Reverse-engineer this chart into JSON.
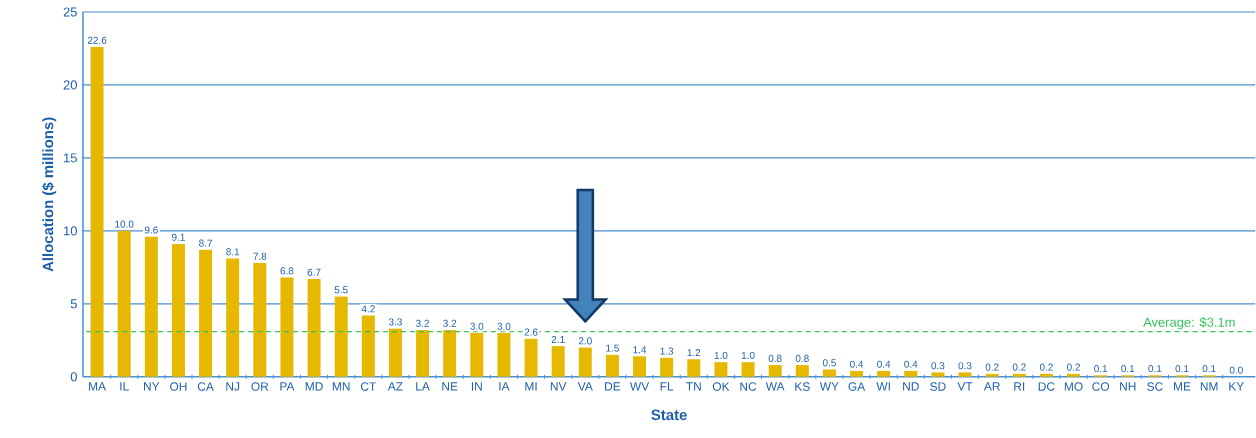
{
  "chart_data": {
    "type": "bar",
    "xlabel": "State",
    "ylabel": "Allocation ($ millions)",
    "categories": [
      "MA",
      "IL",
      "NY",
      "OH",
      "CA",
      "NJ",
      "OR",
      "PA",
      "MD",
      "MN",
      "CT",
      "AZ",
      "LA",
      "NE",
      "IN",
      "IA",
      "MI",
      "NV",
      "VA",
      "DE",
      "WV",
      "FL",
      "TN",
      "OK",
      "NC",
      "WA",
      "KS",
      "WY",
      "GA",
      "WI",
      "ND",
      "SD",
      "VT",
      "AR",
      "RI",
      "DC",
      "MO",
      "CO",
      "NH",
      "SC",
      "ME",
      "NM",
      "KY"
    ],
    "values": [
      22.6,
      10.0,
      9.6,
      9.1,
      8.7,
      8.1,
      7.8,
      6.8,
      6.7,
      5.5,
      4.2,
      3.3,
      3.2,
      3.2,
      3.0,
      3.0,
      2.6,
      2.1,
      2.0,
      1.5,
      1.4,
      1.3,
      1.2,
      1.0,
      1.0,
      0.8,
      0.8,
      0.5,
      0.4,
      0.4,
      0.4,
      0.3,
      0.3,
      0.2,
      0.2,
      0.2,
      0.2,
      0.1,
      0.1,
      0.1,
      0.1,
      0.1,
      0.0
    ],
    "value_labels": [
      "22.6",
      "10.0",
      "9.6",
      "9.1",
      "8.7",
      "8.1",
      "7.8",
      "6.8",
      "6.7",
      "5.5",
      "4.2",
      "3.3",
      "3.2",
      "3.2",
      "3.0",
      "3.0",
      "2.6",
      "2.1",
      "2.0",
      "1.5",
      "1.4",
      "1.3",
      "1.2",
      "1.0",
      "1.0",
      "0.8",
      "0.8",
      "0.5",
      "0.4",
      "0.4",
      "0.4",
      "0.3",
      "0.3",
      "0.2",
      "0.2",
      "0.2",
      "0.2",
      "0.1",
      "0.1",
      "0.1",
      "0.1",
      "0.1",
      "0.0"
    ],
    "color": "#e6b800",
    "ylim": [
      0,
      25
    ],
    "yticks": [
      0,
      5,
      10,
      15,
      20,
      25
    ],
    "grid": "y",
    "ref_lines": [
      {
        "axis": "y",
        "value": 3.1,
        "label": "Average: $3.1m",
        "color": "#33c35a",
        "line_style": "dashed"
      }
    ]
  }
}
